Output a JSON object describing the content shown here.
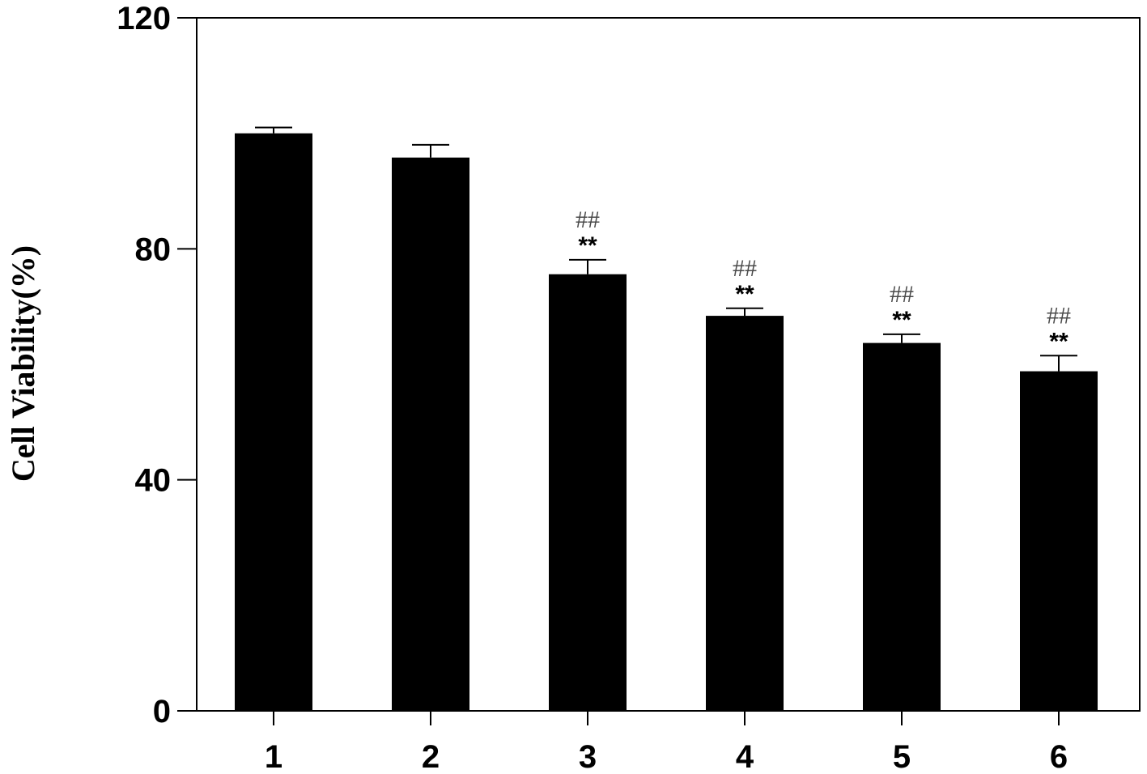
{
  "chart_data": {
    "type": "bar",
    "title": "",
    "xlabel": "",
    "ylabel": "Cell Viability(%)",
    "categories": [
      "1",
      "2",
      "3",
      "4",
      "5",
      "6"
    ],
    "values": [
      100,
      95.8,
      75.6,
      68.4,
      63.7,
      58.8
    ],
    "errors": [
      1.0,
      2.2,
      2.5,
      1.3,
      1.5,
      2.7
    ],
    "ylim": [
      0,
      120
    ],
    "yticks": [
      "0",
      "40",
      "80",
      "120"
    ],
    "annotations": [
      null,
      null,
      {
        "hash": "##",
        "star": "**"
      },
      {
        "hash": "##",
        "star": "**"
      },
      {
        "hash": "##",
        "star": "**"
      },
      {
        "hash": "##",
        "star": "**"
      }
    ],
    "bar_color": "#000000",
    "grid": false,
    "legend": "none"
  }
}
